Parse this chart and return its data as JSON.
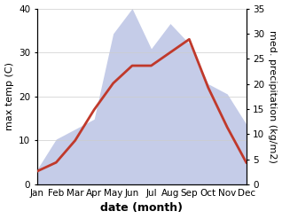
{
  "months": [
    "Jan",
    "Feb",
    "Mar",
    "Apr",
    "May",
    "Jun",
    "Jul",
    "Aug",
    "Sep",
    "Oct",
    "Nov",
    "Dec"
  ],
  "temperature": [
    3,
    5,
    10,
    17,
    23,
    27,
    27,
    30,
    33,
    22,
    13,
    5
  ],
  "precipitation": [
    3,
    9,
    11,
    13,
    30,
    35,
    27,
    32,
    28,
    20,
    18,
    12
  ],
  "temp_color": "#c0392b",
  "precip_fill_color": "#c5cce8",
  "precip_fill_alpha": 1.0,
  "temp_ylim": [
    0,
    40
  ],
  "precip_ylim": [
    0,
    35
  ],
  "temp_yticks": [
    0,
    10,
    20,
    30,
    40
  ],
  "precip_yticks": [
    0,
    5,
    10,
    15,
    20,
    25,
    30,
    35
  ],
  "xlabel": "date (month)",
  "ylabel_left": "max temp (C)",
  "ylabel_right": "med. precipitation (kg/m2)",
  "xlabel_fontsize": 9,
  "ylabel_fontsize": 8,
  "tick_fontsize": 7.5,
  "linewidth": 2.0
}
